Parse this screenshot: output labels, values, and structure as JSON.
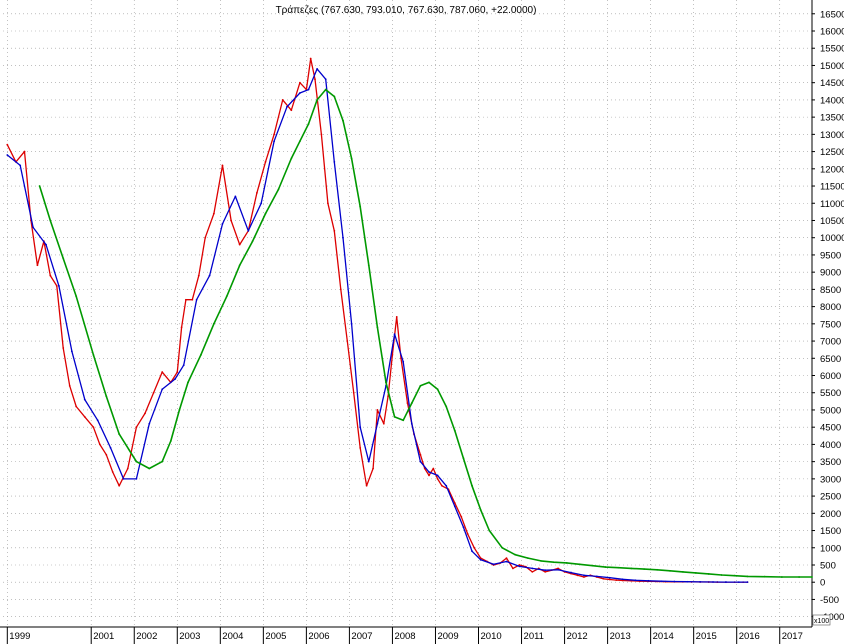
{
  "chart_data": {
    "type": "line",
    "title": "Τράπεζες (767.630, 793.010, 767.630, 787.060, +22.0000)",
    "x_tick_labels": [
      "1999",
      "2001",
      "2002",
      "2003",
      "2004",
      "2005",
      "2006",
      "2007",
      "2008",
      "2009",
      "2010",
      "2011",
      "2012",
      "2013",
      "2014",
      "2015",
      "2016",
      "2017"
    ],
    "x_tick_values": [
      1999.0,
      2000.95,
      2001.95,
      2002.95,
      2003.95,
      2004.95,
      2005.95,
      2006.95,
      2007.95,
      2008.95,
      2009.95,
      2010.95,
      2011.95,
      2012.95,
      2013.95,
      2014.95,
      2015.95,
      2016.95
    ],
    "y_tick_labels": [
      "16500",
      "16000",
      "15500",
      "15000",
      "14500",
      "14000",
      "13500",
      "13000",
      "12500",
      "12000",
      "11500",
      "11000",
      "10500",
      "10000",
      "9500",
      "9000",
      "8500",
      "8000",
      "7500",
      "7000",
      "6500",
      "6000",
      "5500",
      "5000",
      "4500",
      "4000",
      "3500",
      "3000",
      "2500",
      "2000",
      "1500",
      "1000",
      "500",
      "0",
      "-500",
      "-1000"
    ],
    "y_unit_label": "x100",
    "xlim": [
      1998.9,
      2017.7
    ],
    "ylim": [
      -1300,
      16900
    ],
    "grid": true,
    "series": [
      {
        "color": "#dd0000",
        "x": [
          1999.0,
          1999.2,
          1999.4,
          1999.55,
          1999.7,
          1999.85,
          2000.0,
          2000.15,
          2000.3,
          2000.45,
          2000.6,
          2000.8,
          2001.0,
          2001.15,
          2001.3,
          2001.45,
          2001.6,
          2001.8,
          2002.0,
          2002.2,
          2002.4,
          2002.6,
          2002.8,
          2002.95,
          2003.05,
          2003.15,
          2003.3,
          2003.45,
          2003.6,
          2003.8,
          2004.0,
          2004.2,
          2004.4,
          2004.6,
          2004.8,
          2005.0,
          2005.2,
          2005.4,
          2005.6,
          2005.8,
          2005.95,
          2006.05,
          2006.15,
          2006.3,
          2006.45,
          2006.6,
          2006.75,
          2006.9,
          2007.05,
          2007.2,
          2007.35,
          2007.5,
          2007.6,
          2007.75,
          2007.85,
          2007.95,
          2008.05,
          2008.15,
          2008.3,
          2008.45,
          2008.6,
          2008.7,
          2008.8,
          2008.9,
          2009.0,
          2009.1,
          2009.25,
          2009.4,
          2009.55,
          2009.7,
          2009.85,
          2010.0,
          2010.15,
          2010.3,
          2010.45,
          2010.6,
          2010.75,
          2010.9,
          2011.05,
          2011.2,
          2011.35,
          2011.5,
          2011.65,
          2011.8,
          2011.95,
          2012.1,
          2012.25,
          2012.4,
          2012.55,
          2012.7,
          2012.85,
          2013.0,
          2013.15,
          2013.3,
          2013.5,
          2013.7,
          2013.9,
          2014.1,
          2014.3,
          2014.5,
          2014.7,
          2014.9,
          2015.1,
          2015.3,
          2015.5,
          2015.7,
          2015.9,
          2016.1,
          2016.2
        ],
        "y": [
          12700,
          12200,
          12500,
          10500,
          9200,
          9900,
          8900,
          8600,
          6800,
          5700,
          5100,
          4800,
          4500,
          4000,
          3700,
          3200,
          2800,
          3300,
          4500,
          4900,
          5500,
          6100,
          5800,
          6100,
          7400,
          8200,
          8200,
          8900,
          10000,
          10700,
          12100,
          10500,
          9800,
          10200,
          11300,
          12200,
          13000,
          14000,
          13700,
          14500,
          14300,
          15200,
          14600,
          13000,
          11000,
          10200,
          8500,
          7000,
          5500,
          3900,
          2800,
          3300,
          5000,
          4600,
          5400,
          6600,
          7700,
          6500,
          5200,
          4300,
          3700,
          3300,
          3100,
          3300,
          3000,
          2800,
          2700,
          2300,
          1900,
          1400,
          1000,
          700,
          600,
          500,
          550,
          700,
          400,
          500,
          450,
          300,
          400,
          300,
          350,
          400,
          300,
          250,
          200,
          150,
          200,
          150,
          100,
          80,
          60,
          50,
          40,
          30,
          25,
          20,
          15,
          12,
          10,
          8,
          6,
          5,
          4,
          3,
          3,
          3,
          3
        ],
        "name": ""
      },
      {
        "color": "#0000cc",
        "x": [
          1999.0,
          1999.3,
          1999.6,
          1999.9,
          2000.2,
          2000.5,
          2000.8,
          2001.1,
          2001.4,
          2001.7,
          2002.0,
          2002.3,
          2002.6,
          2002.9,
          2003.1,
          2003.4,
          2003.7,
          2004.0,
          2004.3,
          2004.6,
          2004.9,
          2005.2,
          2005.5,
          2005.8,
          2006.0,
          2006.2,
          2006.4,
          2006.6,
          2006.8,
          2007.0,
          2007.2,
          2007.4,
          2007.6,
          2007.8,
          2008.0,
          2008.2,
          2008.4,
          2008.6,
          2008.8,
          2009.0,
          2009.2,
          2009.4,
          2009.6,
          2009.8,
          2010.0,
          2010.3,
          2010.6,
          2010.9,
          2011.2,
          2011.5,
          2011.8,
          2012.1,
          2012.4,
          2012.7,
          2013.0,
          2013.3,
          2013.6,
          2013.9,
          2014.2,
          2014.5,
          2014.8,
          2015.1,
          2015.4,
          2015.7,
          2016.0,
          2016.2
        ],
        "y": [
          12400,
          12100,
          10300,
          9800,
          8600,
          6700,
          5300,
          4700,
          3900,
          3000,
          3000,
          4600,
          5600,
          5900,
          6300,
          8200,
          8900,
          10400,
          11200,
          10200,
          11000,
          12800,
          13800,
          14200,
          14300,
          14900,
          14600,
          12200,
          10000,
          7500,
          4500,
          3500,
          4600,
          5700,
          7200,
          6400,
          4600,
          3500,
          3200,
          3100,
          2800,
          2200,
          1600,
          900,
          650,
          520,
          600,
          460,
          400,
          350,
          360,
          280,
          200,
          170,
          130,
          85,
          55,
          40,
          28,
          20,
          14,
          9,
          6,
          4,
          3,
          3
        ],
        "name": ""
      },
      {
        "color": "#009900",
        "x": [
          1999.75,
          2000.0,
          2000.3,
          2000.6,
          2001.0,
          2001.3,
          2001.6,
          2002.0,
          2002.3,
          2002.6,
          2002.8,
          2003.0,
          2003.2,
          2003.5,
          2003.8,
          2004.1,
          2004.4,
          2004.7,
          2005.0,
          2005.3,
          2005.6,
          2005.8,
          2006.0,
          2006.2,
          2006.4,
          2006.6,
          2006.8,
          2007.0,
          2007.2,
          2007.4,
          2007.6,
          2007.8,
          2008.0,
          2008.2,
          2008.4,
          2008.6,
          2008.8,
          2009.0,
          2009.2,
          2009.4,
          2009.6,
          2009.8,
          2010.0,
          2010.2,
          2010.5,
          2010.8,
          2011.1,
          2011.4,
          2011.7,
          2012.0,
          2012.3,
          2012.6,
          2012.9,
          2013.2,
          2013.5,
          2013.8,
          2014.1,
          2014.4,
          2014.7,
          2015.0,
          2015.3,
          2015.6,
          2015.9,
          2016.2,
          2016.6,
          2017.0,
          2017.4,
          2017.7
        ],
        "y": [
          11500,
          10500,
          9400,
          8300,
          6600,
          5400,
          4300,
          3500,
          3300,
          3500,
          4100,
          5000,
          5800,
          6600,
          7500,
          8300,
          9200,
          9900,
          10700,
          11400,
          12300,
          12800,
          13300,
          14000,
          14300,
          14100,
          13400,
          12300,
          10900,
          9200,
          7400,
          5800,
          4800,
          4700,
          5200,
          5700,
          5800,
          5600,
          5100,
          4400,
          3600,
          2800,
          2100,
          1500,
          1000,
          800,
          700,
          620,
          580,
          560,
          520,
          480,
          440,
          420,
          400,
          380,
          360,
          330,
          300,
          270,
          240,
          210,
          190,
          170,
          160,
          150,
          150,
          150
        ],
        "name": ""
      }
    ]
  }
}
